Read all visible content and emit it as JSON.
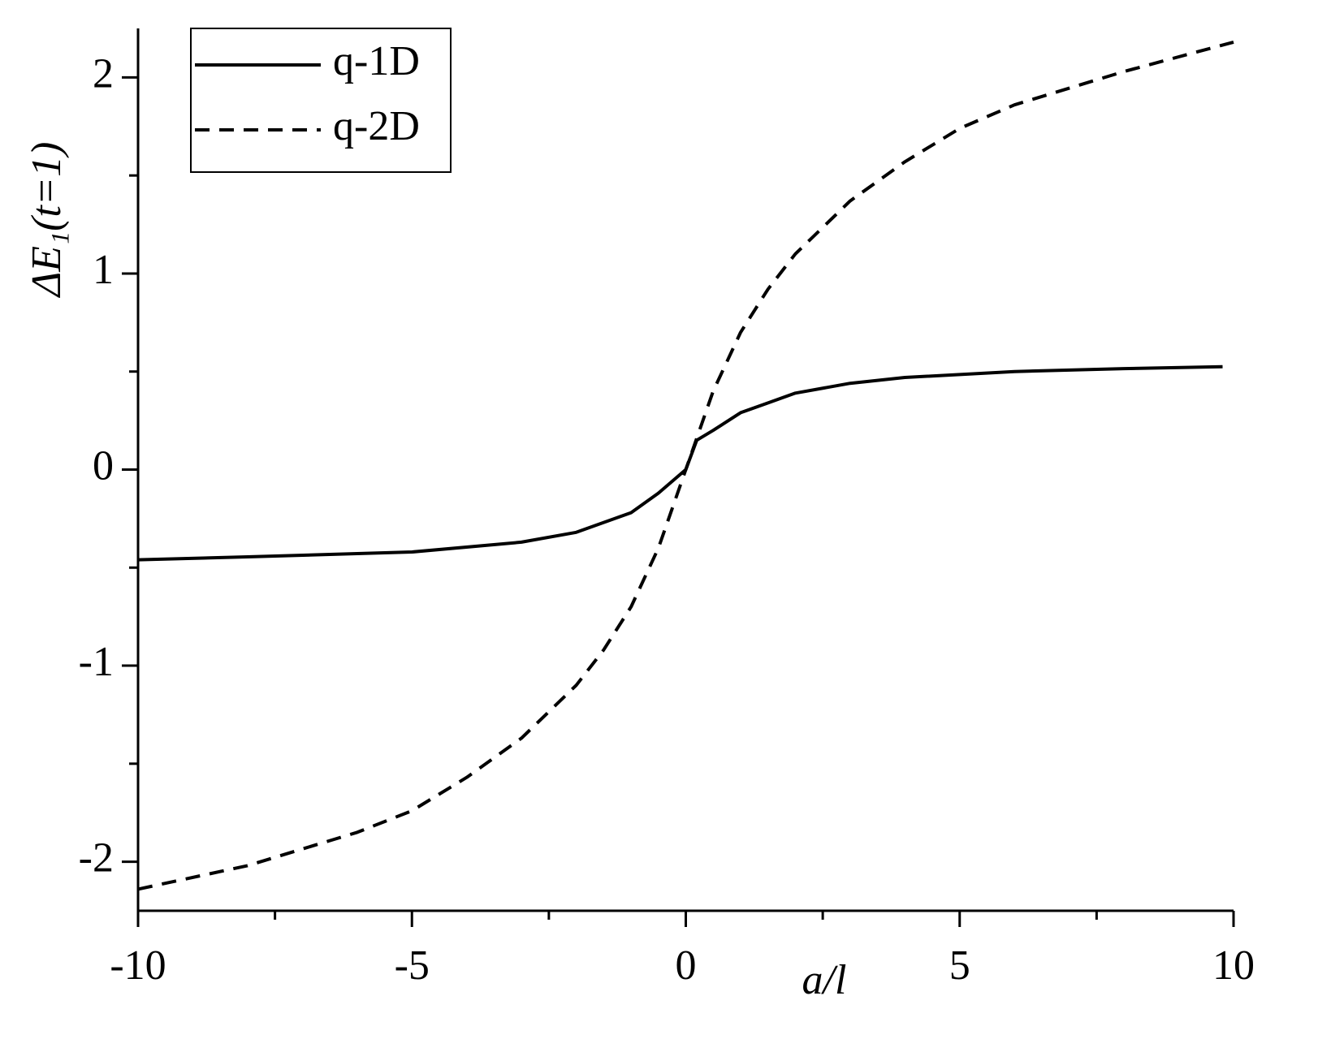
{
  "chart_data": {
    "type": "line",
    "x_label": "a/l",
    "y_label": "ΔE₁(t=1)",
    "xlim": [
      -10,
      10
    ],
    "ylim": [
      -2.25,
      2.25
    ],
    "xticks": [
      -10,
      -5,
      0,
      5,
      10
    ],
    "yticks": [
      -2,
      -1,
      0,
      1,
      2
    ],
    "xminor_ticks": [
      -7.5,
      -2.5,
      2.5,
      7.5
    ],
    "yminor_ticks": [
      -1.5,
      -0.5,
      0.5,
      1.5
    ],
    "legend": "top-left",
    "series": [
      {
        "name": "q-1D",
        "color": "#000000",
        "line_style": "solid",
        "x": [
          -10,
          -8,
          -5,
          -3,
          -2,
          -1,
          -0.5,
          0,
          0.2,
          0.5,
          1,
          1.5,
          2,
          3,
          4,
          6,
          8,
          9.8
        ],
        "values": [
          -0.46,
          -0.445,
          -0.42,
          -0.37,
          -0.32,
          -0.22,
          -0.12,
          0,
          0.15,
          0.2,
          0.29,
          0.34,
          0.39,
          0.44,
          0.47,
          0.5,
          0.515,
          0.525
        ]
      },
      {
        "name": "q-2D",
        "color": "#000000",
        "line_style": "dashed",
        "x": [
          -10,
          -8,
          -6,
          -5,
          -4,
          -3,
          -2,
          -1.5,
          -1,
          -0.5,
          0,
          0.5,
          1,
          1.5,
          2,
          3,
          4,
          5,
          6,
          8,
          10
        ],
        "values": [
          -2.14,
          -2.02,
          -1.85,
          -1.74,
          -1.57,
          -1.37,
          -1.1,
          -0.92,
          -0.7,
          -0.4,
          0,
          0.4,
          0.7,
          0.92,
          1.1,
          1.37,
          1.57,
          1.74,
          1.86,
          2.03,
          2.18
        ]
      }
    ]
  }
}
